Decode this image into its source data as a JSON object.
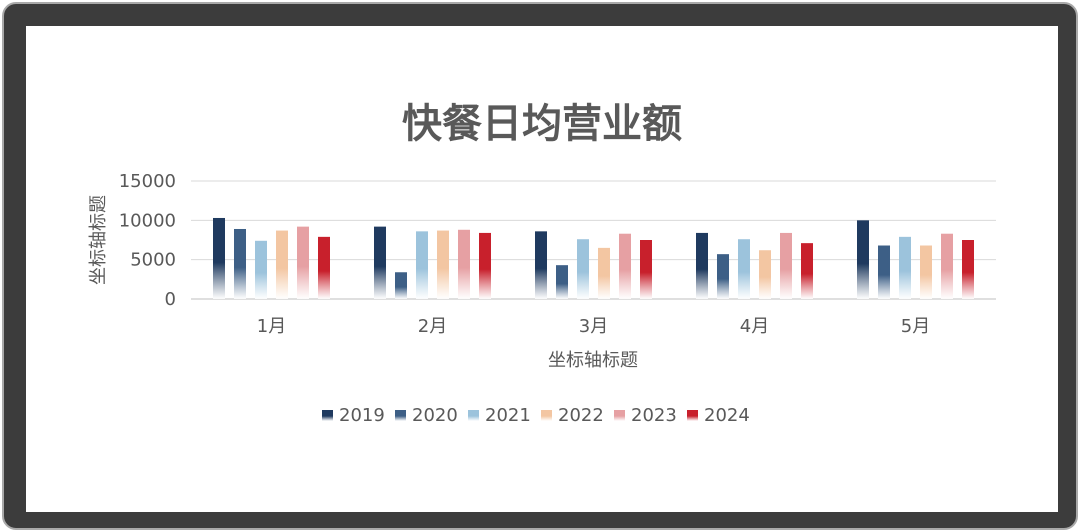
{
  "chart_data": {
    "type": "bar",
    "title": "快餐日均营业额",
    "xlabel": "坐标轴标题",
    "ylabel": "坐标轴标题",
    "categories": [
      "1月",
      "2月",
      "3月",
      "4月",
      "5月"
    ],
    "yticks": [
      "0",
      "5000",
      "10000",
      "15000"
    ],
    "ylim": [
      0,
      15000
    ],
    "grid": true,
    "legend_position": "bottom",
    "series": [
      {
        "name": "2019",
        "color": "#1f3a5f",
        "values": [
          10300,
          9200,
          8600,
          8400,
          10000
        ]
      },
      {
        "name": "2020",
        "color": "#3d5f86",
        "values": [
          8900,
          3400,
          4300,
          5700,
          6800
        ]
      },
      {
        "name": "2021",
        "color": "#9cc3dc",
        "values": [
          7400,
          8600,
          7600,
          7600,
          7900
        ]
      },
      {
        "name": "2022",
        "color": "#f3c6a2",
        "values": [
          8700,
          8700,
          6500,
          6200,
          6800
        ]
      },
      {
        "name": "2023",
        "color": "#e6a0a3",
        "values": [
          9200,
          8800,
          8300,
          8400,
          8300
        ]
      },
      {
        "name": "2024",
        "color": "#c8202c",
        "values": [
          7900,
          8400,
          7500,
          7100,
          7500
        ]
      }
    ]
  }
}
